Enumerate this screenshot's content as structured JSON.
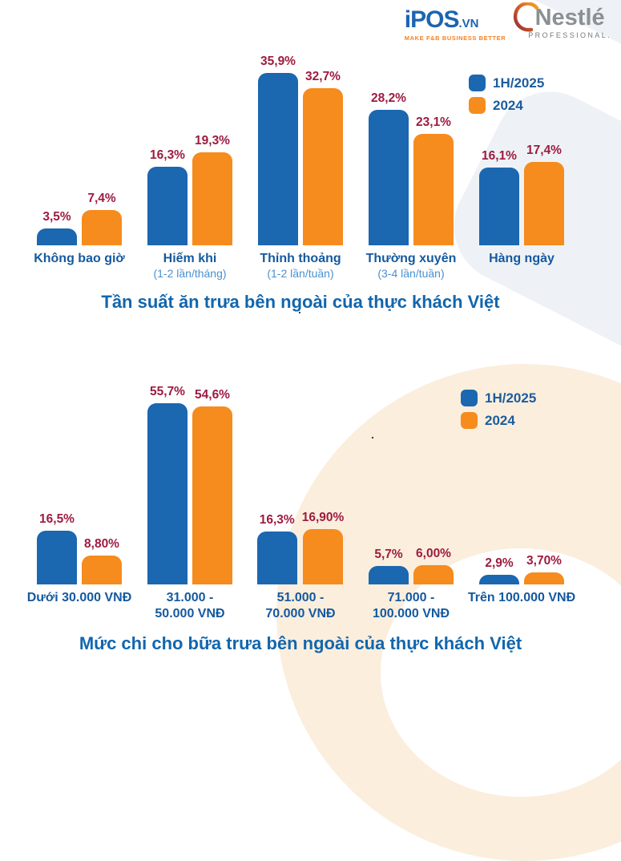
{
  "header": {
    "ipos": {
      "name": "iPOS",
      "tld": ".VN",
      "tagline": "MAKE F&B BUSINESS BETTER"
    },
    "nestle": {
      "name": "Nestlé",
      "subtext": "PROFESSIONAL."
    }
  },
  "legend": {
    "series1": "1H/2025",
    "series2": "2024"
  },
  "colors": {
    "series1": "#1b67b0",
    "series2": "#f68b1e",
    "value_label": "#9e1b3f",
    "category_label": "#15599f",
    "category_sublabel": "#4a90d0",
    "title": "#1266ad",
    "legend_label": "#1b5c9e"
  },
  "misc": {
    "dot1": ".",
    "dot2": "."
  },
  "chart_data": [
    {
      "type": "bar",
      "title": "Tần suất ăn trưa bên ngoài của thực khách Việt",
      "categories": [
        "Không bao giờ",
        "Hiếm khi",
        "Thỉnh thoảng",
        "Thường xuyên",
        "Hàng ngày"
      ],
      "category_sublabels": [
        "",
        "(1-2 lần/tháng)",
        "(1-2 lần/tuần)",
        "(3-4 lần/tuần)",
        ""
      ],
      "series": [
        {
          "name": "1H/2025",
          "values": [
            3.5,
            16.3,
            35.9,
            28.2,
            16.1
          ],
          "labels": [
            "3,5%",
            "16,3%",
            "35,9%",
            "28,2%",
            "16,1%"
          ]
        },
        {
          "name": "2024",
          "values": [
            7.4,
            19.3,
            32.7,
            23.1,
            17.4
          ],
          "labels": [
            "7,4%",
            "19,3%",
            "32,7%",
            "23,1%",
            "17,4%"
          ]
        }
      ],
      "ylim": [
        0,
        40
      ],
      "grid": false,
      "legend_position": "top-right"
    },
    {
      "type": "bar",
      "title": "Mức chi cho bữa trưa bên ngoài của thực khách Việt",
      "categories": [
        "Dưới 30.000 VNĐ",
        "31.000 -\n50.000 VNĐ",
        "51.000 -\n70.000 VNĐ",
        "71.000 -\n100.000 VNĐ",
        "Trên 100.000 VNĐ"
      ],
      "category_sublabels": [
        "",
        "",
        "",
        "",
        ""
      ],
      "series": [
        {
          "name": "1H/2025",
          "values": [
            16.5,
            55.7,
            16.3,
            5.7,
            2.9
          ],
          "labels": [
            "16,5%",
            "55,7%",
            "16,3%",
            "5,7%",
            "2,9%"
          ]
        },
        {
          "name": "2024",
          "values": [
            8.8,
            54.6,
            16.9,
            6.0,
            3.7
          ],
          "labels": [
            "8,80%",
            "54,6%",
            "16,90%",
            "6,00%",
            "3,70%"
          ]
        }
      ],
      "ylim": [
        0,
        64
      ],
      "grid": false,
      "legend_position": "top-right"
    }
  ]
}
